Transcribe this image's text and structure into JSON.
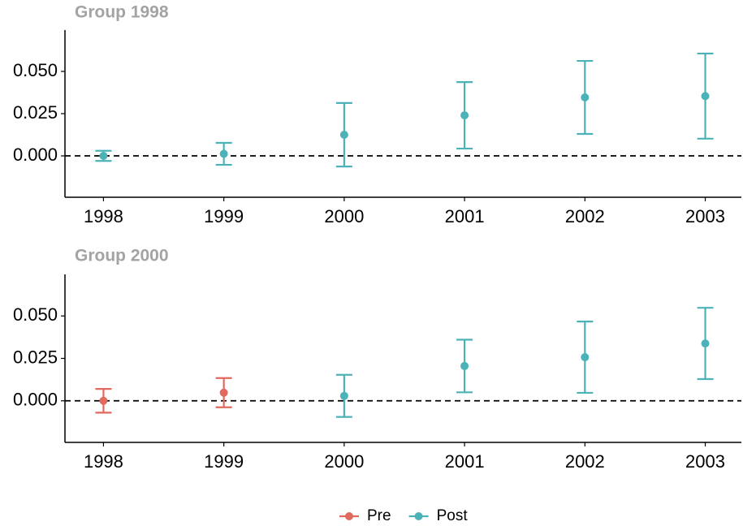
{
  "chart_data": [
    {
      "type": "errorbar",
      "title": "Group 1998",
      "xlim": [
        1997.68,
        2003.3
      ],
      "xticks": [
        1998,
        1999,
        2000,
        2001,
        2002,
        2003
      ],
      "ylim": [
        -0.0245,
        0.0745
      ],
      "yticks": [
        {
          "value": 0,
          "label": "0.000"
        },
        {
          "value": 0.025,
          "label": "0.025"
        },
        {
          "value": 0.05,
          "label": "0.050"
        }
      ],
      "reference_line": 0,
      "series": [
        {
          "name": "Post",
          "color": "#4bb3b8",
          "x": [
            1998,
            1999,
            2000,
            2001,
            2002,
            2003
          ],
          "values": [
            0.0,
            0.0012,
            0.0125,
            0.024,
            0.0346,
            0.0354
          ],
          "errors": [
            0.003,
            0.0065,
            0.0188,
            0.0197,
            0.0216,
            0.0252
          ]
        }
      ]
    },
    {
      "type": "errorbar",
      "title": "Group 2000",
      "xlim": [
        1997.68,
        2003.3
      ],
      "xticks": [
        1998,
        1999,
        2000,
        2001,
        2002,
        2003
      ],
      "ylim": [
        -0.0245,
        0.0745
      ],
      "yticks": [
        {
          "value": 0,
          "label": "0.000"
        },
        {
          "value": 0.025,
          "label": "0.025"
        },
        {
          "value": 0.05,
          "label": "0.050"
        }
      ],
      "reference_line": 0,
      "series": [
        {
          "name": "Pre",
          "color": "#e2695f",
          "x": [
            1998,
            1999
          ],
          "values": [
            0.0,
            0.0048
          ],
          "errors": [
            0.007,
            0.0086
          ]
        },
        {
          "name": "Post",
          "color": "#4bb3b8",
          "x": [
            2000,
            2001,
            2002,
            2003
          ],
          "values": [
            0.0029,
            0.0205,
            0.0257,
            0.0338
          ],
          "errors": [
            0.0124,
            0.0155,
            0.021,
            0.021
          ]
        }
      ]
    }
  ]
}
